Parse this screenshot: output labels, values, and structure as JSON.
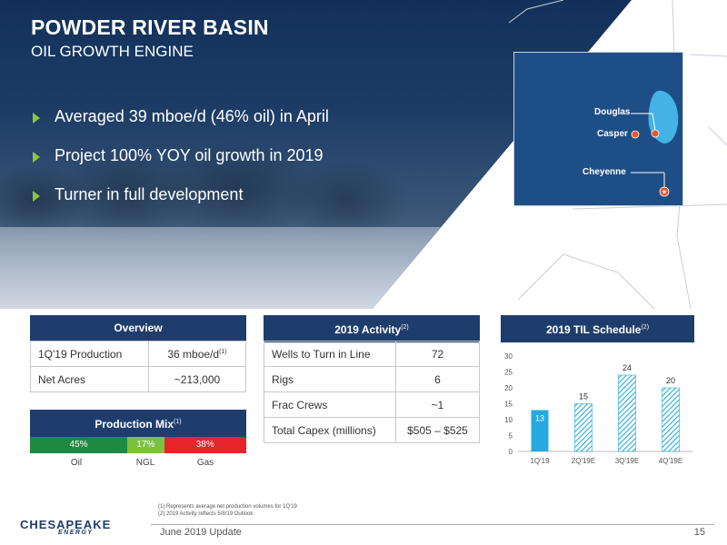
{
  "header": {
    "title": "POWDER RIVER BASIN",
    "subtitle": "OIL GROWTH ENGINE"
  },
  "bullets": [
    "Averaged 39 mboe/d (46% oil) in April",
    "Project 100% YOY oil growth in 2019",
    "Turner in full development"
  ],
  "map": {
    "labels": [
      "Douglas",
      "Casper",
      "Cheyenne"
    ],
    "colors": {
      "box": "#1e4e86",
      "basin": "#43b3e6",
      "marker": "#e4572e"
    }
  },
  "overview": {
    "title": "Overview",
    "rows": [
      {
        "label": "1Q'19 Production",
        "value": "36 mboe/d",
        "note": "(1)"
      },
      {
        "label": "Net Acres",
        "value": "~213,000",
        "note": ""
      }
    ]
  },
  "production_mix": {
    "title": "Production Mix",
    "note": "(1)",
    "segments": [
      {
        "label": "Oil",
        "pct_text": "45%",
        "pct": 45,
        "color": "#1f8a3f"
      },
      {
        "label": "NGL",
        "pct_text": "17%",
        "pct": 17,
        "color": "#7cc142"
      },
      {
        "label": "Gas",
        "pct_text": "38%",
        "pct": 38,
        "color": "#e8242b"
      }
    ]
  },
  "activity": {
    "title": "2019 Activity",
    "note": "(2)",
    "rows": [
      {
        "label": "Wells to Turn in Line",
        "value": "72"
      },
      {
        "label": "Rigs",
        "value": "6"
      },
      {
        "label": "Frac Crews",
        "value": "~1"
      },
      {
        "label": "Total Capex (millions)",
        "value": "$505 – $525"
      }
    ]
  },
  "chart_data": {
    "type": "bar",
    "title": "2019 TIL Schedule",
    "title_note": "(2)",
    "categories": [
      "1Q'19",
      "2Q'19E",
      "3Q'19E",
      "4Q'19E"
    ],
    "values": [
      13,
      15,
      24,
      20
    ],
    "ylim": [
      0,
      30
    ],
    "yticks": [
      0,
      5,
      10,
      15,
      20,
      25,
      30
    ],
    "colors": {
      "actual": "#26a9e0",
      "estimate": "#26a9e0"
    },
    "estimate_style": "hatched"
  },
  "footnotes": [
    "(1)  Represents average net production volumes for 1Q'19",
    "(2)  2019 Activity reflects 5/8/19 Outlook"
  ],
  "footer": {
    "left": "June 2019 Update",
    "page": "15",
    "logo_main": "CHESAPEAKE",
    "logo_sub": "ENERGY"
  }
}
